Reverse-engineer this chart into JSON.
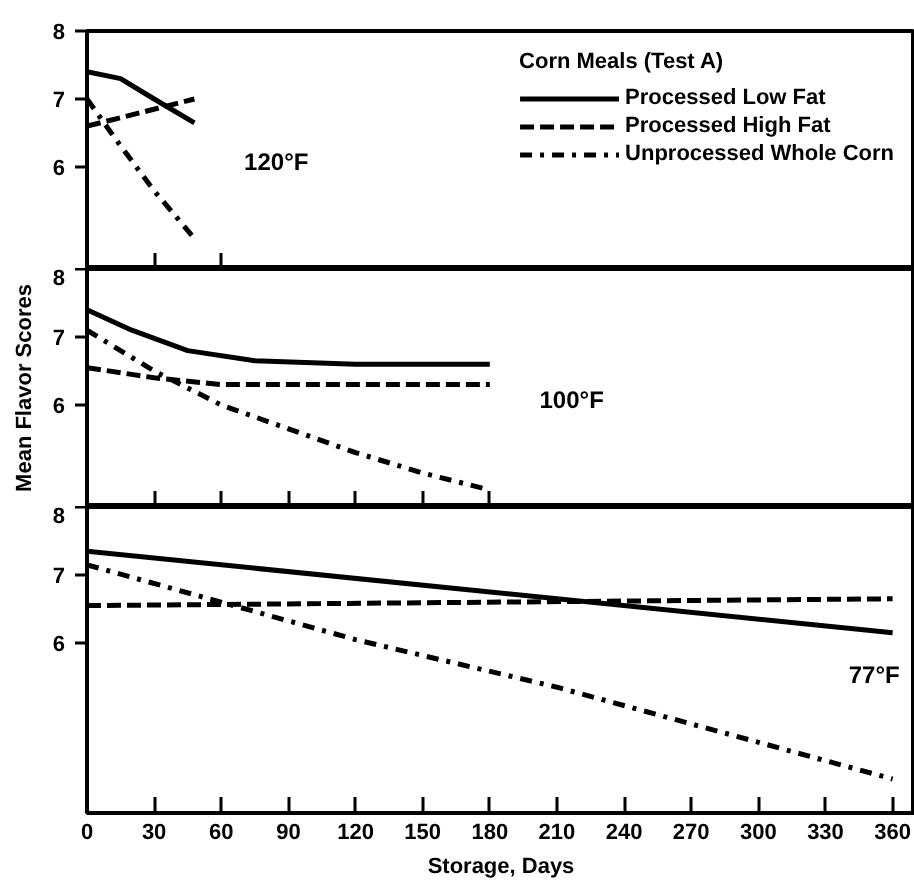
{
  "chart_data": [
    {
      "type": "line",
      "legend_title": "Corn Meals (Test A)",
      "legend": "top right",
      "tick_labels": "y",
      "grid": false,
      "xlim": [
        0,
        370
      ],
      "ylim": [
        4.5,
        8
      ],
      "yticks": [
        6,
        7,
        8
      ],
      "xticks": [
        {
          "value": 30,
          "label": null
        },
        {
          "value": 60,
          "label": null
        }
      ],
      "annotations": [
        "120°F"
      ],
      "series": [
        {
          "name": "Processed Low Fat",
          "color": "#000000",
          "line_style": "solid",
          "x": [
            0,
            15,
            30,
            48
          ],
          "values": [
            7.4,
            7.3,
            7.0,
            6.65
          ]
        },
        {
          "name": "Processed High Fat",
          "color": "#000000",
          "line_style": "dashed",
          "x": [
            0,
            48
          ],
          "values": [
            6.6,
            7.0
          ]
        },
        {
          "name": "Unprocessed Whole Corn",
          "color": "#000000",
          "line_style": "dashdot",
          "x": [
            0,
            13,
            30,
            48
          ],
          "values": [
            7.0,
            6.4,
            5.65,
            4.95
          ]
        }
      ]
    },
    {
      "type": "line",
      "ylabel": "Mean Flavor Scores",
      "tick_labels": "y",
      "grid": false,
      "xlim": [
        0,
        370
      ],
      "ylim": [
        4.5,
        8
      ],
      "yticks": [
        6,
        7,
        8
      ],
      "xticks": [
        {
          "value": 30,
          "label": null
        },
        {
          "value": 60,
          "label": null
        },
        {
          "value": 90,
          "label": null
        },
        {
          "value": 120,
          "label": null
        },
        {
          "value": 150,
          "label": null
        },
        {
          "value": 180,
          "label": null
        }
      ],
      "annotations": [
        "100°F"
      ],
      "series": [
        {
          "color": "#000000",
          "line_style": "solid",
          "x": [
            0,
            20,
            45,
            75,
            120,
            180
          ],
          "values": [
            7.4,
            7.1,
            6.8,
            6.65,
            6.6,
            6.6
          ]
        },
        {
          "color": "#000000",
          "line_style": "dashed",
          "x": [
            0,
            30,
            60,
            180
          ],
          "values": [
            6.55,
            6.4,
            6.3,
            6.3
          ]
        },
        {
          "color": "#000000",
          "line_style": "dashdot",
          "x": [
            0,
            30,
            60,
            90,
            120,
            150,
            180
          ],
          "values": [
            7.1,
            6.5,
            6.0,
            5.65,
            5.3,
            5.0,
            4.75
          ]
        }
      ]
    },
    {
      "type": "line",
      "xlabel": "Storage, Days",
      "grid": false,
      "xlim": [
        0,
        370
      ],
      "ylim": [
        3.5,
        8
      ],
      "yticks": [
        6,
        7,
        8
      ],
      "xticks": [
        0,
        30,
        60,
        90,
        120,
        150,
        180,
        210,
        240,
        270,
        300,
        330,
        360
      ],
      "annotations": [
        "77°F"
      ],
      "series": [
        {
          "color": "#000000",
          "line_style": "solid",
          "x": [
            0,
            360
          ],
          "values": [
            7.35,
            6.15
          ]
        },
        {
          "color": "#000000",
          "line_style": "dashed",
          "x": [
            0,
            360
          ],
          "values": [
            6.55,
            6.65
          ]
        },
        {
          "color": "#000000",
          "line_style": "dashdot",
          "x": [
            0,
            120,
            210,
            360
          ],
          "values": [
            7.15,
            6.05,
            5.35,
            4.0
          ]
        }
      ]
    }
  ]
}
